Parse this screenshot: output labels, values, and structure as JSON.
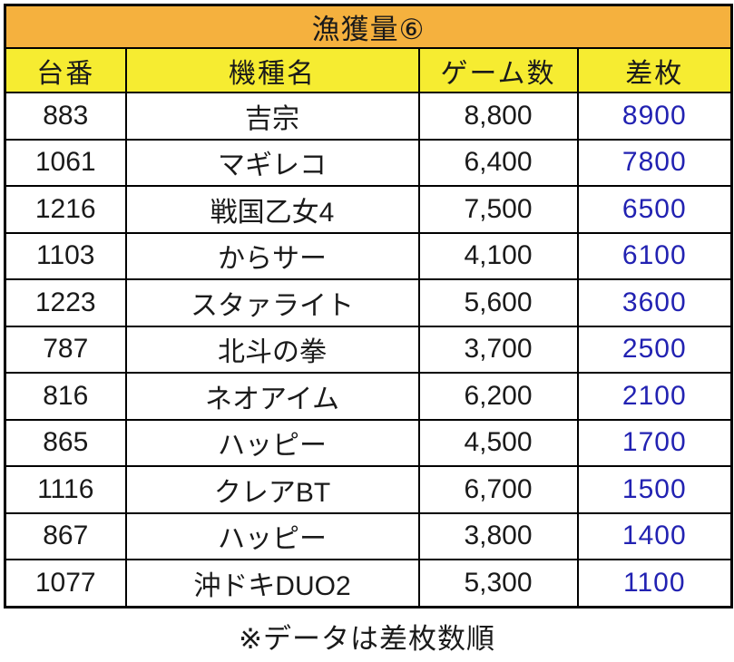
{
  "chart_data": {
    "type": "table",
    "title": "漁獲量⑥",
    "columns": [
      "台番",
      "機種名",
      "ゲーム数",
      "差枚"
    ],
    "rows": [
      [
        "883",
        "吉宗",
        "8,800",
        "8900"
      ],
      [
        "1061",
        "マギレコ",
        "6,400",
        "7800"
      ],
      [
        "1216",
        "戦国乙女4",
        "7,500",
        "6500"
      ],
      [
        "1103",
        "からサー",
        "4,100",
        "6100"
      ],
      [
        "1223",
        "スタァライト",
        "5,600",
        "3600"
      ],
      [
        "787",
        "北斗の拳",
        "3,700",
        "2500"
      ],
      [
        "816",
        "ネオアイム",
        "6,200",
        "2100"
      ],
      [
        "865",
        "ハッピー",
        "4,500",
        "1700"
      ],
      [
        "1116",
        "クレアBT",
        "6,700",
        "1500"
      ],
      [
        "867",
        "ハッピー",
        "3,800",
        "1400"
      ],
      [
        "1077",
        "沖ドキDUO2",
        "5,300",
        "1100"
      ]
    ],
    "footnote": "※データは差枚数順",
    "sort_note": "sorted by diff-medal count descending"
  },
  "colors": {
    "title_bg": "#F5B13E",
    "header_bg": "#F6EC31",
    "row_bg": "#FFFFFF",
    "border": "#000000",
    "text": "#1A1A1A",
    "diff_text": "#2222B2"
  }
}
